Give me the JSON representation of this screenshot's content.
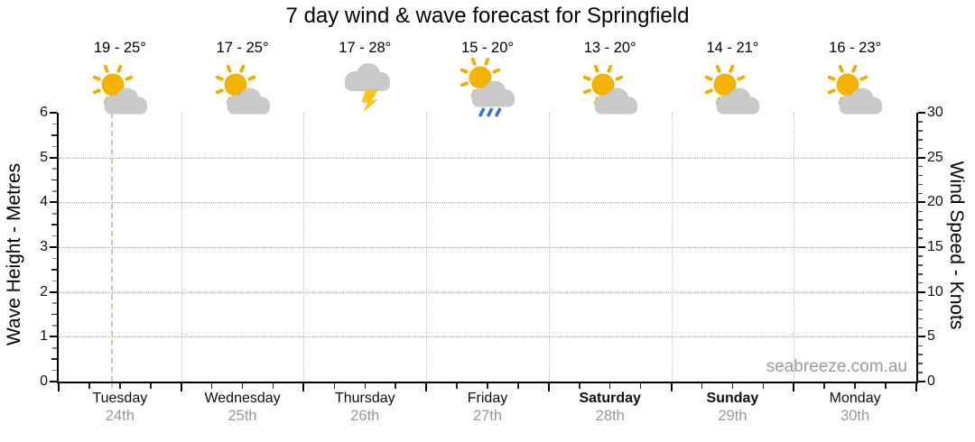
{
  "watermark": "seabreeze.com.au",
  "colors": {
    "sun": "#f5b301",
    "ray": "#f3ad00",
    "cloud": "#c9c9c9",
    "lightning": "#fdc41e",
    "rain": "#3a6ed8",
    "axis": "#000000",
    "grid_dotted": "#a9a9a9",
    "current_time": "#f5b3ae",
    "date_text": "#999999",
    "watermark_text": "#9b9b9b"
  },
  "chart_data": {
    "type": "line",
    "title": "7 day wind & wave forecast for Springfield",
    "series": [],
    "grid": "dotted",
    "y_left_axis": {
      "label": "Wave Height - Metres",
      "min": 0,
      "max": 6,
      "major_step": 1,
      "minor_step": 0.25,
      "ticks": [
        0,
        1,
        2,
        3,
        4,
        5,
        6
      ]
    },
    "y_right_axis": {
      "label": "Wind Speed - Knots",
      "min": 0,
      "max": 30,
      "major_step": 5,
      "minor_step": 1,
      "ticks": [
        0,
        5,
        10,
        15,
        20,
        25,
        30
      ]
    },
    "x_axis": {
      "minor_ticks_per_day": 4
    },
    "current_time_marker": {
      "day_index": 0,
      "day_fraction": 0.435
    },
    "days": [
      {
        "name": "Tuesday",
        "date": "24th",
        "temps": "19 - 25°",
        "temp_low": 19,
        "temp_high": 25,
        "icon": "partly-cloudy",
        "weekend": false
      },
      {
        "name": "Wednesday",
        "date": "25th",
        "temps": "17 - 25°",
        "temp_low": 17,
        "temp_high": 25,
        "icon": "partly-cloudy",
        "weekend": false
      },
      {
        "name": "Thursday",
        "date": "26th",
        "temps": "17 - 28°",
        "temp_low": 17,
        "temp_high": 28,
        "icon": "thunderstorm",
        "weekend": false
      },
      {
        "name": "Friday",
        "date": "27th",
        "temps": "15 - 20°",
        "temp_low": 15,
        "temp_high": 20,
        "icon": "partly-cloudy-rain",
        "weekend": false
      },
      {
        "name": "Saturday",
        "date": "28th",
        "temps": "13 - 20°",
        "temp_low": 13,
        "temp_high": 20,
        "icon": "partly-cloudy",
        "weekend": true
      },
      {
        "name": "Sunday",
        "date": "29th",
        "temps": "14 - 21°",
        "temp_low": 14,
        "temp_high": 21,
        "icon": "partly-cloudy",
        "weekend": true
      },
      {
        "name": "Monday",
        "date": "30th",
        "temps": "16 - 23°",
        "temp_low": 16,
        "temp_high": 23,
        "icon": "partly-cloudy",
        "weekend": false
      }
    ]
  }
}
